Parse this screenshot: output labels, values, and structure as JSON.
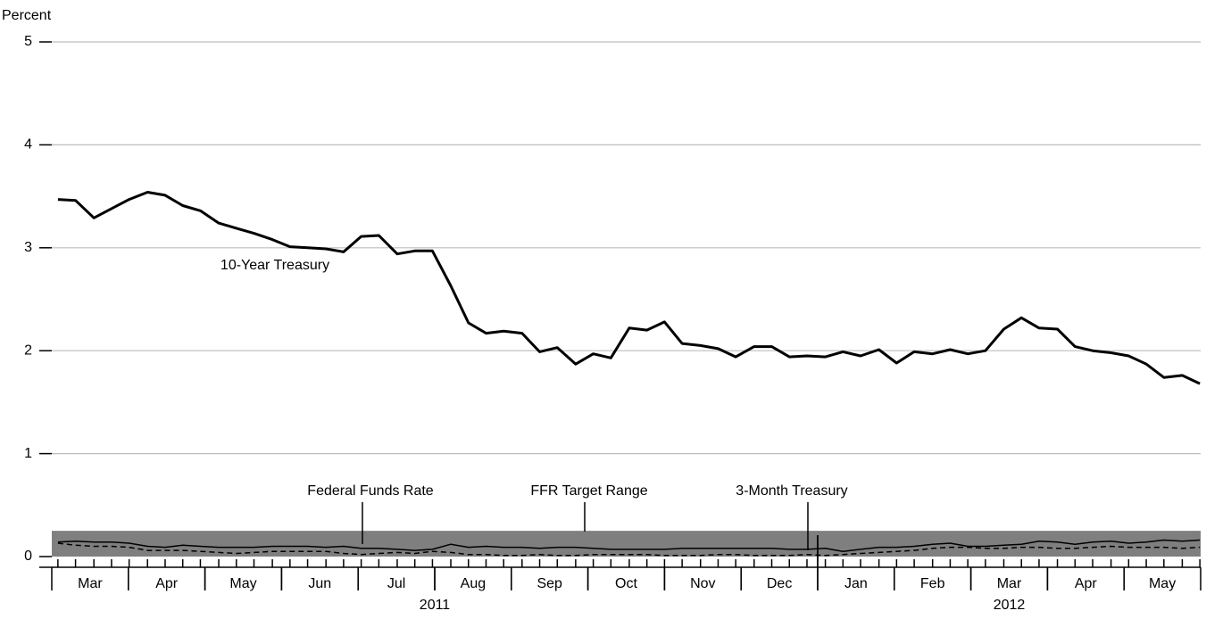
{
  "chart_data": {
    "type": "line",
    "y_label": "Percent",
    "x": [
      0.08,
      0.31,
      0.55,
      0.78,
      1.01,
      1.25,
      1.48,
      1.71,
      1.94,
      2.18,
      2.41,
      2.64,
      2.88,
      3.11,
      3.34,
      3.58,
      3.81,
      4.04,
      4.27,
      4.51,
      4.74,
      4.97,
      5.21,
      5.44,
      5.67,
      5.9,
      6.14,
      6.37,
      6.6,
      6.84,
      7.07,
      7.3,
      7.54,
      7.77,
      8.0,
      8.23,
      8.47,
      8.7,
      8.93,
      9.17,
      9.4,
      9.63,
      9.86,
      10.1,
      10.33,
      10.56,
      10.8,
      11.03,
      11.26,
      11.5,
      11.73,
      11.96,
      12.19,
      12.43,
      12.66,
      12.89,
      13.13,
      13.36,
      13.59,
      13.83,
      14.06,
      14.29,
      14.52,
      14.76,
      14.99
    ],
    "series": [
      {
        "name": "10-Year Treasury",
        "color": "#000000",
        "style": "solid",
        "width": 3,
        "values": [
          3.47,
          3.46,
          3.29,
          3.38,
          3.47,
          3.54,
          3.51,
          3.41,
          3.36,
          3.24,
          3.19,
          3.14,
          3.08,
          3.01,
          3.0,
          2.99,
          2.96,
          3.11,
          3.12,
          2.94,
          2.97,
          2.97,
          2.63,
          2.27,
          2.17,
          2.19,
          2.17,
          1.99,
          2.03,
          1.87,
          1.97,
          1.93,
          2.22,
          2.2,
          2.28,
          2.07,
          2.05,
          2.02,
          1.94,
          2.04,
          2.04,
          1.94,
          1.95,
          1.94,
          1.99,
          1.95,
          2.01,
          1.88,
          1.99,
          1.97,
          2.01,
          1.97,
          2.0,
          2.21,
          2.32,
          2.22,
          2.21,
          2.04,
          2.0,
          1.98,
          1.95,
          1.87,
          1.74,
          1.76,
          1.68
        ]
      },
      {
        "name": "Federal Funds Rate",
        "color": "#000000",
        "style": "solid",
        "width": 1.5,
        "values": [
          0.14,
          0.15,
          0.14,
          0.14,
          0.13,
          0.1,
          0.09,
          0.11,
          0.1,
          0.09,
          0.09,
          0.09,
          0.1,
          0.1,
          0.1,
          0.09,
          0.1,
          0.08,
          0.08,
          0.07,
          0.06,
          0.07,
          0.12,
          0.09,
          0.1,
          0.09,
          0.09,
          0.08,
          0.09,
          0.09,
          0.08,
          0.07,
          0.07,
          0.07,
          0.07,
          0.08,
          0.08,
          0.08,
          0.08,
          0.08,
          0.08,
          0.07,
          0.07,
          0.08,
          0.05,
          0.07,
          0.09,
          0.09,
          0.1,
          0.12,
          0.13,
          0.1,
          0.1,
          0.11,
          0.12,
          0.15,
          0.14,
          0.12,
          0.14,
          0.15,
          0.13,
          0.14,
          0.16,
          0.15,
          0.16
        ]
      },
      {
        "name": "3-Month Treasury",
        "color": "#000000",
        "style": "dashed",
        "width": 1.5,
        "values": [
          0.13,
          0.11,
          0.1,
          0.1,
          0.09,
          0.06,
          0.06,
          0.06,
          0.05,
          0.04,
          0.03,
          0.04,
          0.05,
          0.05,
          0.05,
          0.05,
          0.03,
          0.02,
          0.03,
          0.04,
          0.03,
          0.05,
          0.04,
          0.02,
          0.02,
          0.01,
          0.01,
          0.02,
          0.01,
          0.01,
          0.02,
          0.02,
          0.02,
          0.02,
          0.01,
          0.01,
          0.01,
          0.02,
          0.02,
          0.01,
          0.01,
          0.01,
          0.02,
          0.01,
          0.02,
          0.03,
          0.04,
          0.05,
          0.06,
          0.08,
          0.09,
          0.09,
          0.08,
          0.08,
          0.09,
          0.09,
          0.08,
          0.08,
          0.09,
          0.1,
          0.09,
          0.09,
          0.09,
          0.08,
          0.09
        ]
      }
    ],
    "target_range": {
      "name": "FFR Target Range",
      "color": "#7f7f7f",
      "range": [
        0,
        0.25
      ]
    },
    "xlim": [
      0,
      15
    ],
    "xticks": [
      {
        "value": 0.5,
        "label": "Mar"
      },
      {
        "value": 1.5,
        "label": "Apr"
      },
      {
        "value": 2.5,
        "label": "May"
      },
      {
        "value": 3.5,
        "label": "Jun"
      },
      {
        "value": 4.5,
        "label": "Jul"
      },
      {
        "value": 5.5,
        "label": "Aug"
      },
      {
        "value": 6.5,
        "label": "Sep"
      },
      {
        "value": 7.5,
        "label": "Oct"
      },
      {
        "value": 8.5,
        "label": "Nov"
      },
      {
        "value": 9.5,
        "label": "Dec"
      },
      {
        "value": 10.5,
        "label": "Jan"
      },
      {
        "value": 11.5,
        "label": "Feb"
      },
      {
        "value": 12.5,
        "label": "Mar"
      },
      {
        "value": 13.5,
        "label": "Apr"
      },
      {
        "value": 14.5,
        "label": "May"
      }
    ],
    "x_group_labels": [
      {
        "value": 5,
        "label": "2011"
      },
      {
        "value": 12.5,
        "label": "2012"
      }
    ],
    "year_boundary": 10,
    "ylim": [
      0,
      5
    ],
    "yticks": [
      0,
      1,
      2,
      3,
      4,
      5
    ],
    "grid": true
  }
}
